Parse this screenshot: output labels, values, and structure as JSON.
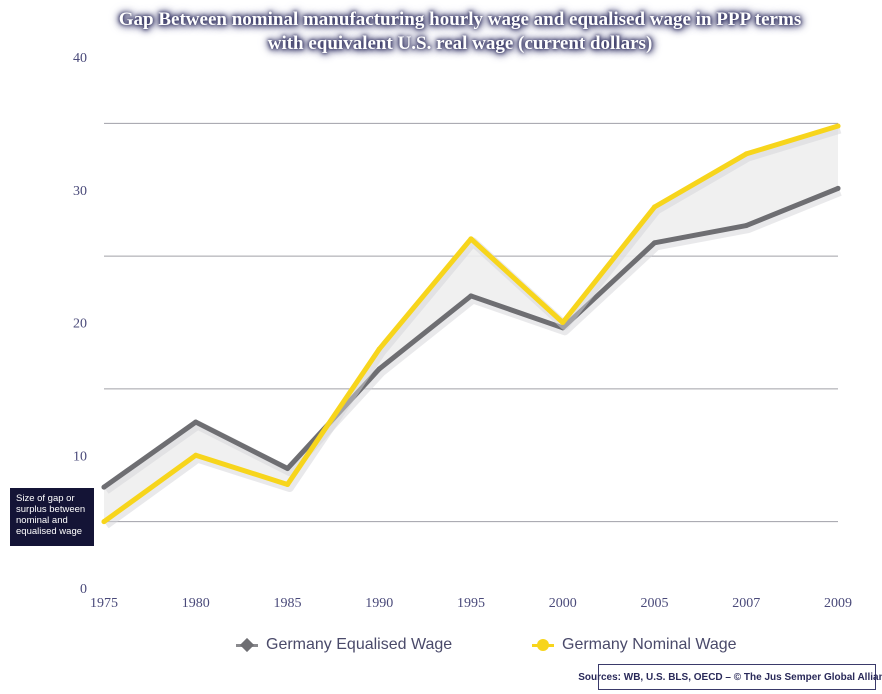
{
  "chart_data": {
    "type": "line",
    "title_lines": [
      "Gap Between nominal manufacturing hourly wage and equalised wage in PPP terms",
      "with equivalent U.S. real wage (current dollars)"
    ],
    "categories": [
      "1975",
      "1980",
      "1985",
      "1990",
      "1995",
      "2000",
      "2005",
      "2007",
      "2009"
    ],
    "series": [
      {
        "name": "Germany Equalised Wage",
        "color": "#6e6e72",
        "values": [
          7.6,
          12.5,
          9.0,
          16.5,
          22.0,
          19.6,
          26.0,
          27.3,
          30.1
        ]
      },
      {
        "name": "Germany Nominal Wage",
        "color": "#f7d51c",
        "values": [
          5.0,
          10.0,
          7.8,
          18.0,
          26.3,
          20.0,
          28.7,
          32.7,
          34.8
        ]
      }
    ],
    "y_ticks": [
      0,
      10,
      20,
      30,
      40
    ],
    "ylim": [
      0,
      40
    ],
    "gridlines": [
      5,
      15,
      25,
      35
    ],
    "annotation": "Size of gap or surplus between nominal and equalised wage",
    "source": "Sources: WB, U.S. BLS, OECD – © The Jus Semper Global Alliance"
  }
}
